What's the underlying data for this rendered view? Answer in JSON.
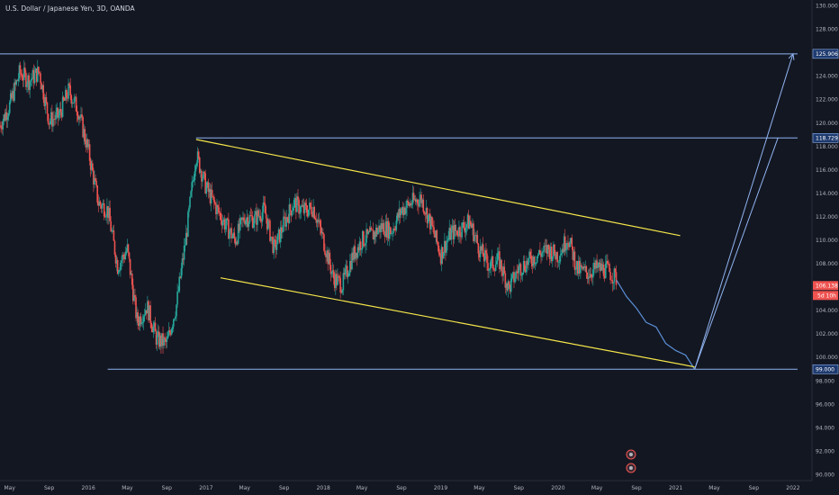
{
  "header": {
    "title": "U.S. Dollar / Japanese Yen, 3D, OANDA"
  },
  "colors": {
    "background": "#131722",
    "up": "#26a69a",
    "down": "#ef5350",
    "level_line": "#90b4f0",
    "channel": "#f5e64a",
    "projection": "#5b8fd6",
    "price_tag": "#ef5350"
  },
  "chart_data": {
    "type": "candlestick",
    "title": "U.S. Dollar / Japanese Yen, 3D, OANDA",
    "ylim": [
      89.5,
      130.5
    ],
    "yticks": [
      90,
      92,
      94,
      96,
      98,
      100,
      102,
      104,
      106,
      108,
      110,
      112,
      114,
      116,
      118,
      120,
      122,
      124,
      126,
      128,
      130
    ],
    "ytick_labels": [
      "90.000",
      "92.000",
      "94.000",
      "96.000",
      "98.000",
      "100.000",
      "102.000",
      "104.000",
      "106.000",
      "108.000",
      "110.000",
      "112.000",
      "114.000",
      "116.000",
      "118.000",
      "120.000",
      "122.000",
      "124.000",
      "126.000",
      "128.000",
      "130.000"
    ],
    "xlim": [
      "2015-04-01",
      "2022-03-01"
    ],
    "xticks": [
      {
        "date": "2015-05-01",
        "label": "May"
      },
      {
        "date": "2015-09-01",
        "label": "Sep"
      },
      {
        "date": "2016-01-01",
        "label": "2016"
      },
      {
        "date": "2016-05-01",
        "label": "May"
      },
      {
        "date": "2016-09-01",
        "label": "Sep"
      },
      {
        "date": "2017-01-01",
        "label": "2017"
      },
      {
        "date": "2017-05-01",
        "label": "May"
      },
      {
        "date": "2017-09-01",
        "label": "Sep"
      },
      {
        "date": "2018-01-01",
        "label": "2018"
      },
      {
        "date": "2018-05-01",
        "label": "May"
      },
      {
        "date": "2018-09-01",
        "label": "Sep"
      },
      {
        "date": "2019-01-01",
        "label": "2019"
      },
      {
        "date": "2019-05-01",
        "label": "May"
      },
      {
        "date": "2019-09-01",
        "label": "Sep"
      },
      {
        "date": "2020-01-01",
        "label": "2020"
      },
      {
        "date": "2020-05-01",
        "label": "May"
      },
      {
        "date": "2020-09-01",
        "label": "Sep"
      },
      {
        "date": "2021-01-01",
        "label": "2021"
      },
      {
        "date": "2021-05-01",
        "label": "May"
      },
      {
        "date": "2021-09-01",
        "label": "Sep"
      },
      {
        "date": "2022-01-01",
        "label": "2022"
      }
    ],
    "price_path": [
      [
        "2015-04-01",
        119.8
      ],
      [
        "2015-05-01",
        121.5
      ],
      [
        "2015-06-01",
        124.3
      ],
      [
        "2015-07-01",
        123.6
      ],
      [
        "2015-08-01",
        124.4
      ],
      [
        "2015-09-01",
        120.2
      ],
      [
        "2015-10-01",
        120.6
      ],
      [
        "2015-11-01",
        122.8
      ],
      [
        "2015-12-01",
        121.0
      ],
      [
        "2016-01-01",
        117.6
      ],
      [
        "2016-02-01",
        113.2
      ],
      [
        "2016-03-01",
        112.6
      ],
      [
        "2016-04-01",
        107.8
      ],
      [
        "2016-05-01",
        109.2
      ],
      [
        "2016-06-01",
        103.0
      ],
      [
        "2016-07-01",
        104.4
      ],
      [
        "2016-08-01",
        101.5
      ],
      [
        "2016-09-01",
        101.2
      ],
      [
        "2016-10-01",
        104.5
      ],
      [
        "2016-11-01",
        110.5
      ],
      [
        "2016-12-01",
        117.4
      ],
      [
        "2017-01-01",
        114.5
      ],
      [
        "2017-02-01",
        112.8
      ],
      [
        "2017-03-01",
        111.4
      ],
      [
        "2017-04-01",
        110.0
      ],
      [
        "2017-05-01",
        112.0
      ],
      [
        "2017-06-01",
        111.8
      ],
      [
        "2017-07-01",
        112.6
      ],
      [
        "2017-08-01",
        109.2
      ],
      [
        "2017-09-01",
        111.5
      ],
      [
        "2017-10-01",
        113.2
      ],
      [
        "2017-11-01",
        112.5
      ],
      [
        "2017-12-01",
        112.8
      ],
      [
        "2018-01-01",
        110.0
      ],
      [
        "2018-02-01",
        106.8
      ],
      [
        "2018-03-01",
        106.2
      ],
      [
        "2018-04-01",
        108.6
      ],
      [
        "2018-05-01",
        110.0
      ],
      [
        "2018-06-01",
        110.4
      ],
      [
        "2018-07-01",
        111.2
      ],
      [
        "2018-08-01",
        110.8
      ],
      [
        "2018-09-01",
        112.6
      ],
      [
        "2018-10-01",
        113.2
      ],
      [
        "2018-11-01",
        113.6
      ],
      [
        "2018-12-01",
        111.4
      ],
      [
        "2019-01-01",
        108.8
      ],
      [
        "2019-02-01",
        110.6
      ],
      [
        "2019-03-01",
        110.9
      ],
      [
        "2019-04-01",
        111.6
      ],
      [
        "2019-05-01",
        109.3
      ],
      [
        "2019-06-01",
        107.8
      ],
      [
        "2019-07-01",
        108.3
      ],
      [
        "2019-08-01",
        105.9
      ],
      [
        "2019-09-01",
        107.6
      ],
      [
        "2019-10-01",
        108.2
      ],
      [
        "2019-11-01",
        108.8
      ],
      [
        "2019-12-01",
        109.2
      ],
      [
        "2020-01-01",
        108.7
      ],
      [
        "2020-02-01",
        110.3
      ],
      [
        "2020-03-01",
        107.5
      ],
      [
        "2020-04-01",
        107.2
      ],
      [
        "2020-05-01",
        107.6
      ],
      [
        "2020-06-01",
        107.5
      ],
      [
        "2020-07-01",
        106.7
      ]
    ],
    "projection_path": [
      [
        "2020-07-01",
        106.6
      ],
      [
        "2020-08-01",
        105.2
      ],
      [
        "2020-09-01",
        104.2
      ],
      [
        "2020-10-01",
        103.0
      ],
      [
        "2020-11-01",
        102.6
      ],
      [
        "2020-12-01",
        101.2
      ],
      [
        "2021-01-01",
        100.6
      ],
      [
        "2021-02-01",
        100.2
      ],
      [
        "2021-03-01",
        99.0
      ]
    ],
    "levels": [
      {
        "value": 125.906,
        "label": "125.906",
        "from": "2015-04-01",
        "to": "2022-01-15"
      },
      {
        "value": 118.729,
        "label": "118.729",
        "from": "2016-12-01",
        "to": "2022-01-15"
      },
      {
        "value": 99.0,
        "label": "99.000",
        "from": "2016-03-01",
        "to": "2022-01-15"
      }
    ],
    "channel": [
      {
        "from": [
          "2016-12-01",
          118.6
        ],
        "to": [
          "2021-01-15",
          110.4
        ]
      },
      {
        "from": [
          "2017-02-15",
          106.8
        ],
        "to": [
          "2021-03-01",
          99.2
        ]
      }
    ],
    "projection_arrows": [
      {
        "from": [
          "2021-03-01",
          99.0
        ],
        "to": [
          "2022-01-01",
          125.906
        ]
      },
      {
        "from": [
          "2021-03-01",
          99.0
        ],
        "to": [
          "2021-11-15",
          118.729
        ]
      }
    ],
    "current_price": {
      "value": 106.138,
      "label": "106.138",
      "countdown": "5d 10h"
    }
  }
}
